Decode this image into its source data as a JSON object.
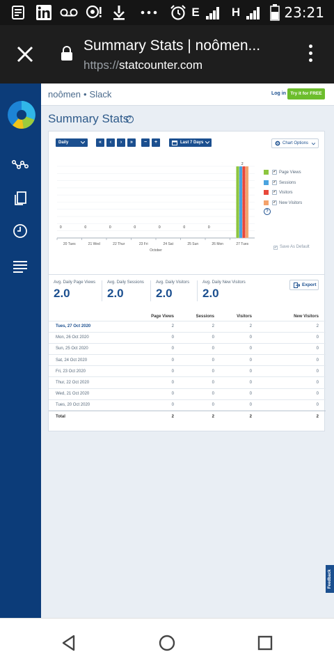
{
  "status_bar": {
    "time": "23:21",
    "network_1": "E",
    "network_2": "H",
    "icons": [
      "news-icon",
      "linkedin-icon",
      "voicemail-icon",
      "bubble-alert-icon",
      "download-icon",
      "more-dots-icon",
      "alarm-icon",
      "signal-icon",
      "battery-icon"
    ]
  },
  "browser": {
    "page_title": "Summary Stats | noômen...",
    "url_scheme": "https://",
    "url_host": "statcounter.com"
  },
  "nav": {
    "icons": [
      "statcounter-logo",
      "journey-icon",
      "copy-icon",
      "clock-icon",
      "menu-lines-icon"
    ]
  },
  "header": {
    "project": "noômen",
    "separator": "•",
    "workspace": "Slack",
    "login_label": "Log in",
    "try_label": "Try it for FREE"
  },
  "page": {
    "title": "Summary Stats",
    "help": "?"
  },
  "controls": {
    "granularity": "Daily",
    "first": "«",
    "prev": "‹",
    "next": "›",
    "last": "»",
    "zoom_out": "−",
    "zoom_in": "+",
    "range": "Last 7 Days",
    "chart_options": "Chart Options",
    "save_default": "Save As Default"
  },
  "chart_data": {
    "type": "bar",
    "categories": [
      "20 Tues",
      "21 Wed",
      "22 Thur",
      "23 Fri",
      "24 Sat",
      "25 Sun",
      "26 Mon",
      "27 Tues"
    ],
    "xlabel": "October",
    "ylabel": "",
    "ylim": [
      0,
      2
    ],
    "grid": true,
    "legend_position": "right",
    "series": [
      {
        "name": "Page Views",
        "color": "#8dc63f",
        "values": [
          0,
          0,
          0,
          0,
          0,
          0,
          0,
          2
        ]
      },
      {
        "name": "Sessions",
        "color": "#4aa3df",
        "values": [
          0,
          0,
          0,
          0,
          0,
          0,
          0,
          2
        ]
      },
      {
        "name": "Visitors",
        "color": "#e8483b",
        "values": [
          0,
          0,
          0,
          0,
          0,
          0,
          0,
          2
        ]
      },
      {
        "name": "New Visitors",
        "color": "#f4a26b",
        "values": [
          0,
          0,
          0,
          0,
          0,
          0,
          0,
          2
        ]
      }
    ],
    "data_labels": [
      "0",
      "0",
      "0",
      "0",
      "0",
      "0",
      "0",
      "2"
    ]
  },
  "summary": {
    "avg_page_views_label": "Avg. Daily Page Views",
    "avg_page_views": "2.0",
    "avg_sessions_label": "Avg. Daily Sessions",
    "avg_sessions": "2.0",
    "avg_visitors_label": "Avg. Daily Visitors",
    "avg_visitors": "2.0",
    "avg_new_visitors_label": "Avg. Daily New Visitors",
    "avg_new_visitors": "2.0",
    "export_label": "Export"
  },
  "table": {
    "columns": [
      "",
      "Page Views",
      "Sessions",
      "Visitors",
      "New Visitors"
    ],
    "rows": [
      [
        "Tues, 27 Oct 2020",
        "2",
        "2",
        "2",
        "2"
      ],
      [
        "Mon, 26 Oct 2020",
        "0",
        "0",
        "0",
        "0"
      ],
      [
        "Sun, 25 Oct 2020",
        "0",
        "0",
        "0",
        "0"
      ],
      [
        "Sat, 24 Oct 2020",
        "0",
        "0",
        "0",
        "0"
      ],
      [
        "Fri, 23 Oct 2020",
        "0",
        "0",
        "0",
        "0"
      ],
      [
        "Thur, 22 Oct 2020",
        "0",
        "0",
        "0",
        "0"
      ],
      [
        "Wed, 21 Oct 2020",
        "0",
        "0",
        "0",
        "0"
      ],
      [
        "Tues, 20 Oct 2020",
        "0",
        "0",
        "0",
        "0"
      ]
    ],
    "total": [
      "Total",
      "2",
      "2",
      "2",
      "2"
    ]
  },
  "feedback_label": "Feedback",
  "system_nav": {
    "icons": [
      "back-icon",
      "home-icon",
      "recents-icon"
    ]
  }
}
